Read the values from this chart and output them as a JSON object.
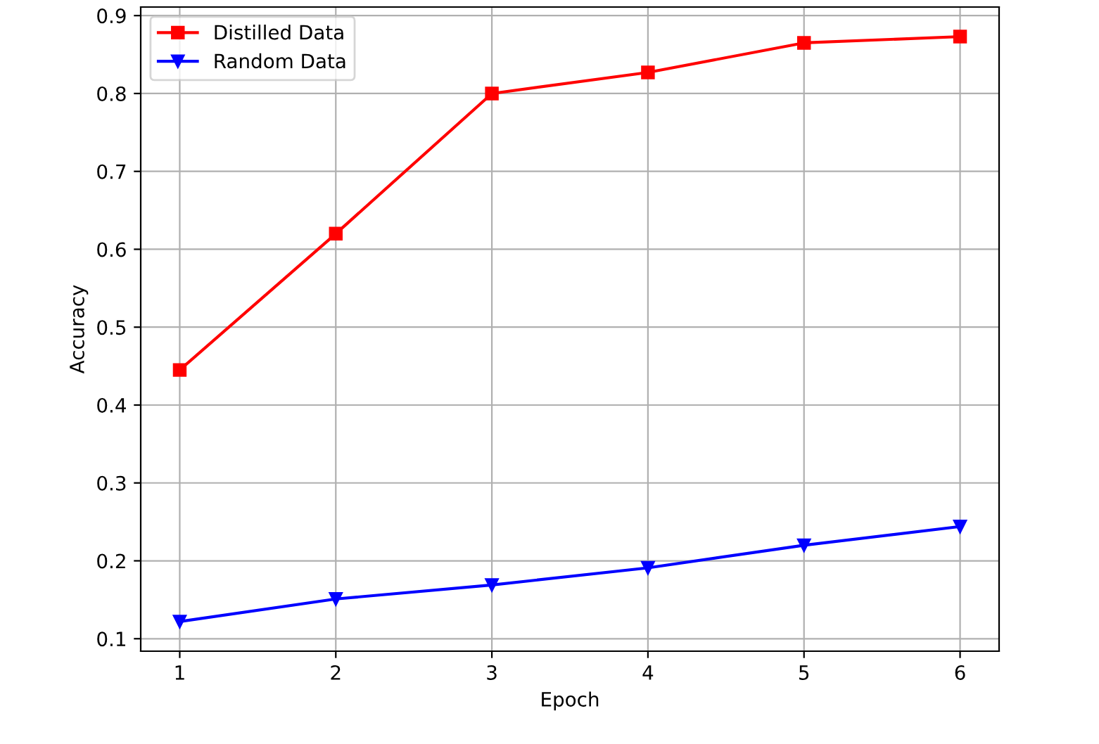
{
  "chart_data": {
    "type": "line",
    "xlabel": "Epoch",
    "ylabel": "Accuracy",
    "x": [
      1,
      2,
      3,
      4,
      5,
      6
    ],
    "series": [
      {
        "name": "Distilled Data",
        "color": "#ff0000",
        "marker": "square",
        "values": [
          0.445,
          0.62,
          0.8,
          0.827,
          0.865,
          0.873
        ]
      },
      {
        "name": "Random Data",
        "color": "#0000ff",
        "marker": "triangle",
        "values": [
          0.122,
          0.151,
          0.169,
          0.191,
          0.22,
          0.244
        ]
      }
    ],
    "xlim": [
      0.75,
      6.25
    ],
    "ylim": [
      0.084,
      0.911
    ],
    "xticks": [
      1,
      2,
      3,
      4,
      5,
      6
    ],
    "yticks": [
      0.1,
      0.2,
      0.3,
      0.4,
      0.5,
      0.6,
      0.7,
      0.8,
      0.9
    ],
    "grid": true,
    "legend": "top left",
    "line_style": "solid"
  }
}
